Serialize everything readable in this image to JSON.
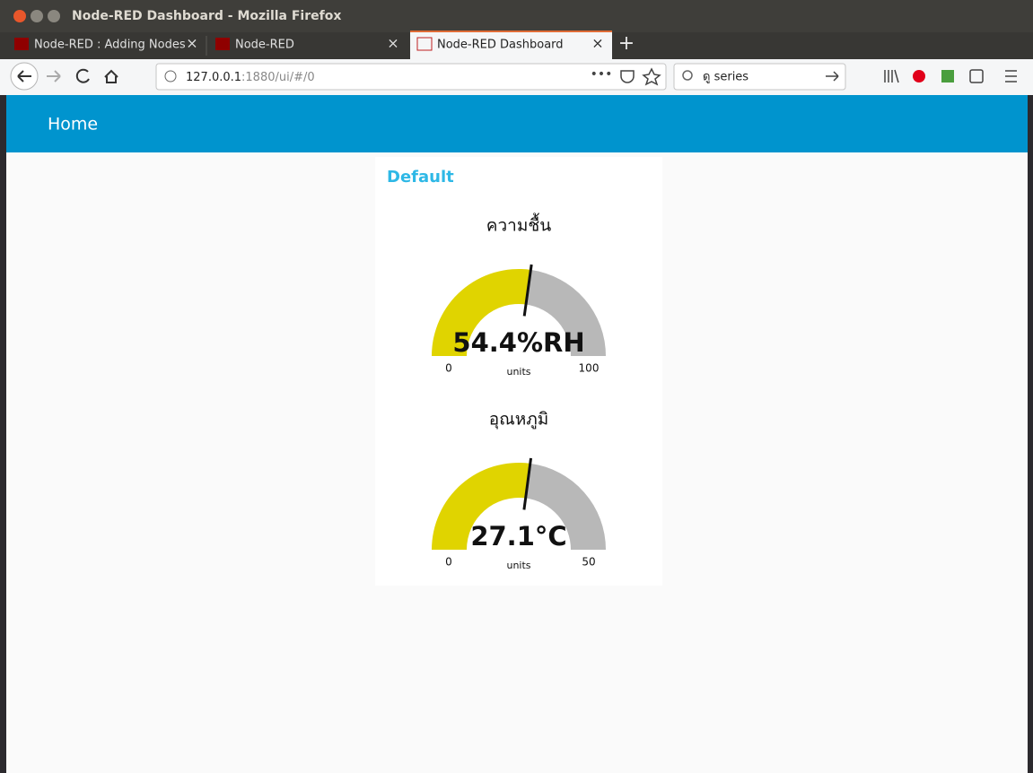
{
  "window": {
    "title": "Node-RED Dashboard - Mozilla Firefox"
  },
  "tabs": [
    {
      "label": "Node-RED : Adding Nodes",
      "active": false
    },
    {
      "label": "Node-RED",
      "active": false
    },
    {
      "label": "Node-RED Dashboard",
      "active": true
    }
  ],
  "address_bar": {
    "host": "127.0.0.1",
    "path": ":1880/ui/#/0"
  },
  "search_bar": {
    "text": "ดู series"
  },
  "header": {
    "title": "Home"
  },
  "group": {
    "title": "Default",
    "gauges": [
      {
        "title": "ความชื้น",
        "value": 54.4,
        "value_label": "54.4%RH",
        "min": 0,
        "max": 100,
        "units": "units"
      },
      {
        "title": "อุณหภูมิ",
        "value": 27.1,
        "value_label": "27.1°C",
        "min": 0,
        "max": 50,
        "units": "units"
      }
    ]
  }
}
